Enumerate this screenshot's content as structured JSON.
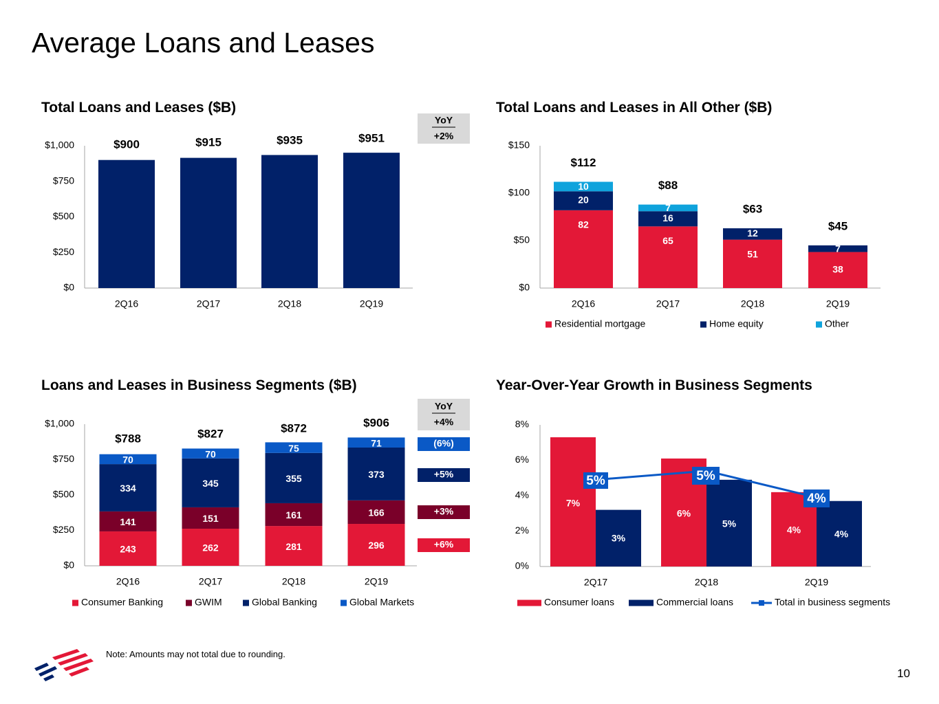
{
  "page": {
    "title": "Average Loans and Leases",
    "note": "Note: Amounts may not total due to rounding.",
    "page_number": "10"
  },
  "colors": {
    "navy": "#012169",
    "red": "#e31837",
    "maroon": "#7a0029",
    "blue": "#0a59c6",
    "light_blue": "#0fa3dc",
    "gray_box": "#d9d9d9",
    "axis": "#a6a6a6"
  },
  "chart_data": [
    {
      "id": "total",
      "type": "bar",
      "title": "Total Loans and Leases ($B)",
      "categories": [
        "2Q16",
        "2Q17",
        "2Q18",
        "2Q19"
      ],
      "values": [
        900,
        915,
        935,
        951
      ],
      "total_labels": [
        "$900",
        "$915",
        "$935",
        "$951"
      ],
      "yticks": [
        "$0",
        "$250",
        "$500",
        "$750",
        "$1,000"
      ],
      "ylim": [
        0,
        1000
      ],
      "yoy_header": "YoY",
      "yoy": [
        "+2%"
      ]
    },
    {
      "id": "allother",
      "type": "bar",
      "stacked": true,
      "title": "Total Loans and Leases in All Other ($B)",
      "categories": [
        "2Q16",
        "2Q17",
        "2Q18",
        "2Q19"
      ],
      "series": [
        {
          "name": "Residential mortgage",
          "values": [
            82,
            65,
            51,
            38
          ],
          "color": "#e31837"
        },
        {
          "name": "Home equity",
          "values": [
            20,
            16,
            12,
            7
          ],
          "color": "#012169"
        },
        {
          "name": "Other",
          "values": [
            10,
            7,
            0,
            0
          ],
          "color": "#0fa3dc"
        }
      ],
      "labels": [
        [
          "82",
          "20",
          "10"
        ],
        [
          "65",
          "16",
          "7"
        ],
        [
          "51",
          "12",
          ""
        ],
        [
          "38",
          "7",
          ""
        ]
      ],
      "total_labels": [
        "$112",
        "$88",
        "$63",
        "$45"
      ],
      "yticks": [
        "$0",
        "$50",
        "$100",
        "$150"
      ],
      "ylim": [
        0,
        150
      ]
    },
    {
      "id": "segments",
      "type": "bar",
      "stacked": true,
      "title": "Loans and Leases in Business Segments ($B)",
      "categories": [
        "2Q16",
        "2Q17",
        "2Q18",
        "2Q19"
      ],
      "series": [
        {
          "name": "Consumer Banking",
          "values": [
            243,
            262,
            281,
            296
          ],
          "color": "#e31837"
        },
        {
          "name": "GWIM",
          "values": [
            141,
            151,
            161,
            166
          ],
          "color": "#7a0029"
        },
        {
          "name": "Global Banking",
          "values": [
            334,
            345,
            355,
            373
          ],
          "color": "#012169"
        },
        {
          "name": "Global Markets",
          "values": [
            70,
            70,
            75,
            71
          ],
          "color": "#0a59c6"
        }
      ],
      "labels": [
        [
          "243",
          "141",
          "334",
          "70"
        ],
        [
          "262",
          "151",
          "345",
          "70"
        ],
        [
          "281",
          "161",
          "355",
          "75"
        ],
        [
          "296",
          "166",
          "373",
          "71"
        ]
      ],
      "total_labels": [
        "$788",
        "$827",
        "$872",
        "$906"
      ],
      "yticks": [
        "$0",
        "$250",
        "$500",
        "$750",
        "$1,000"
      ],
      "ylim": [
        0,
        1000
      ],
      "yoy_header": "YoY",
      "yoy": [
        "+4%",
        "(6%)",
        "+5%",
        "+3%",
        "+6%"
      ]
    },
    {
      "id": "growth",
      "type": "bar",
      "title": "Year-Over-Year Growth in Business Segments",
      "categories": [
        "2Q17",
        "2Q18",
        "2Q19"
      ],
      "series": [
        {
          "name": "Consumer loans",
          "values": [
            7.3,
            6.1,
            4.2
          ],
          "labels": [
            "7%",
            "6%",
            "4%"
          ],
          "color": "#e31837"
        },
        {
          "name": "Commercial loans",
          "values": [
            3.2,
            4.9,
            3.7
          ],
          "labels": [
            "3%",
            "5%",
            "4%"
          ],
          "color": "#012169"
        }
      ],
      "line": {
        "name": "Total in business segments",
        "values": [
          4.9,
          5.4,
          3.9
        ],
        "labels": [
          "5%",
          "5%",
          "4%"
        ],
        "color": "#0a59c6"
      },
      "yticks": [
        "0%",
        "2%",
        "4%",
        "6%",
        "8%"
      ],
      "ylim": [
        0,
        8
      ]
    }
  ]
}
